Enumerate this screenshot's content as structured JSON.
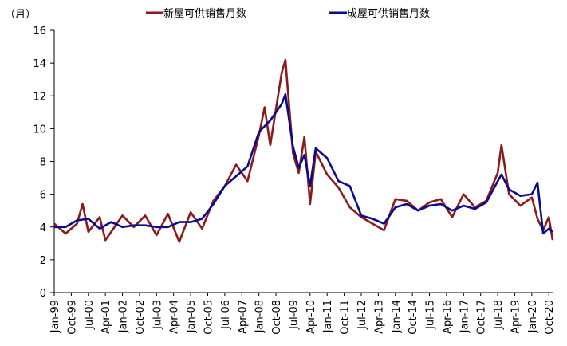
{
  "chart_data": {
    "type": "line",
    "unit_label": "（月）",
    "ylim": [
      0,
      16
    ],
    "yticks": [
      0,
      2,
      4,
      6,
      8,
      10,
      12,
      14,
      16
    ],
    "x_range": [
      "Jan-99",
      "Dec-20"
    ],
    "x_tick_labels": [
      "Jan-99",
      "Oct-99",
      "Jul-00",
      "Apr-01",
      "Jan-02",
      "Oct-02",
      "Jul-03",
      "Apr-04",
      "Jan-05",
      "Oct-05",
      "Jul-06",
      "Apr-07",
      "Jan-08",
      "Oct-08",
      "Jul-09",
      "Apr-10",
      "Jan-11",
      "Oct-11",
      "Jul-12",
      "Apr-13",
      "Jan-14",
      "Oct-14",
      "Jul-15",
      "Apr-16",
      "Jan-17",
      "Oct-17",
      "Jul-18",
      "Apr-19",
      "Jan-20",
      "Oct-20"
    ],
    "grid": false,
    "legend_position": "top",
    "series": [
      {
        "name": "新屋可供销售月数",
        "color": "#8B1A1A",
        "points": [
          [
            "Jan-99",
            4.2
          ],
          [
            "Jul-99",
            3.6
          ],
          [
            "Jan-00",
            4.2
          ],
          [
            "Apr-00",
            5.4
          ],
          [
            "Jul-00",
            3.7
          ],
          [
            "Jan-01",
            4.6
          ],
          [
            "Apr-01",
            3.2
          ],
          [
            "Jan-02",
            4.7
          ],
          [
            "Jul-02",
            4.0
          ],
          [
            "Jan-03",
            4.7
          ],
          [
            "Jul-03",
            3.5
          ],
          [
            "Jan-04",
            4.8
          ],
          [
            "Jul-04",
            3.1
          ],
          [
            "Jan-05",
            4.9
          ],
          [
            "Jul-05",
            3.9
          ],
          [
            "Jan-06",
            5.6
          ],
          [
            "Jul-06",
            6.5
          ],
          [
            "Jan-07",
            7.8
          ],
          [
            "Jul-07",
            6.8
          ],
          [
            "Jan-08",
            9.6
          ],
          [
            "Apr-08",
            11.3
          ],
          [
            "Jul-08",
            9.0
          ],
          [
            "Jan-09",
            13.4
          ],
          [
            "Mar-09",
            14.2
          ],
          [
            "Jul-09",
            8.5
          ],
          [
            "Oct-09",
            7.3
          ],
          [
            "Jan-10",
            9.5
          ],
          [
            "Apr-10",
            5.4
          ],
          [
            "Jul-10",
            8.6
          ],
          [
            "Jan-11",
            7.2
          ],
          [
            "Jul-11",
            6.4
          ],
          [
            "Jan-12",
            5.2
          ],
          [
            "Jul-12",
            4.6
          ],
          [
            "Jan-13",
            4.2
          ],
          [
            "Jul-13",
            3.8
          ],
          [
            "Jan-14",
            5.7
          ],
          [
            "Jul-14",
            5.6
          ],
          [
            "Jan-15",
            5.0
          ],
          [
            "Jul-15",
            5.5
          ],
          [
            "Jan-16",
            5.7
          ],
          [
            "Jul-16",
            4.6
          ],
          [
            "Jan-17",
            6.0
          ],
          [
            "Jul-17",
            5.2
          ],
          [
            "Jan-18",
            5.6
          ],
          [
            "Jul-18",
            7.3
          ],
          [
            "Sep-18",
            9.0
          ],
          [
            "Jan-19",
            6.0
          ],
          [
            "Jul-19",
            5.3
          ],
          [
            "Jan-20",
            5.8
          ],
          [
            "Apr-20",
            4.5
          ],
          [
            "Jul-20",
            3.8
          ],
          [
            "Oct-20",
            4.6
          ],
          [
            "Dec-20",
            3.2
          ]
        ]
      },
      {
        "name": "成屋可供销售月数",
        "color": "#0A0A8C",
        "points": [
          [
            "Jan-99",
            4.0
          ],
          [
            "Jul-99",
            4.0
          ],
          [
            "Jan-00",
            4.4
          ],
          [
            "Jul-00",
            4.5
          ],
          [
            "Jan-01",
            3.9
          ],
          [
            "Jul-01",
            4.3
          ],
          [
            "Jan-02",
            4.0
          ],
          [
            "Jul-02",
            4.1
          ],
          [
            "Jan-03",
            4.1
          ],
          [
            "Jul-03",
            4.0
          ],
          [
            "Jan-04",
            4.0
          ],
          [
            "Jul-04",
            4.3
          ],
          [
            "Jan-05",
            4.3
          ],
          [
            "Jul-05",
            4.5
          ],
          [
            "Jan-06",
            5.4
          ],
          [
            "Jul-06",
            6.5
          ],
          [
            "Jan-07",
            7.1
          ],
          [
            "Jul-07",
            7.7
          ],
          [
            "Jan-08",
            9.8
          ],
          [
            "Jul-08",
            10.5
          ],
          [
            "Jan-09",
            11.5
          ],
          [
            "Mar-09",
            12.1
          ],
          [
            "Jul-09",
            8.9
          ],
          [
            "Oct-09",
            7.6
          ],
          [
            "Jan-10",
            8.4
          ],
          [
            "Apr-10",
            6.5
          ],
          [
            "Jul-10",
            8.8
          ],
          [
            "Jan-11",
            8.2
          ],
          [
            "Jul-11",
            6.8
          ],
          [
            "Jan-12",
            6.5
          ],
          [
            "Jul-12",
            4.7
          ],
          [
            "Jan-13",
            4.5
          ],
          [
            "Jul-13",
            4.2
          ],
          [
            "Jan-14",
            5.2
          ],
          [
            "Jul-14",
            5.4
          ],
          [
            "Jan-15",
            5.0
          ],
          [
            "Jul-15",
            5.3
          ],
          [
            "Jan-16",
            5.4
          ],
          [
            "Jul-16",
            5.0
          ],
          [
            "Jan-17",
            5.3
          ],
          [
            "Jul-17",
            5.1
          ],
          [
            "Jan-18",
            5.5
          ],
          [
            "Jul-18",
            6.8
          ],
          [
            "Sep-18",
            7.2
          ],
          [
            "Jan-19",
            6.3
          ],
          [
            "Jul-19",
            5.9
          ],
          [
            "Jan-20",
            6.0
          ],
          [
            "Apr-20",
            6.7
          ],
          [
            "Jul-20",
            3.6
          ],
          [
            "Oct-20",
            3.9
          ],
          [
            "Dec-20",
            3.7
          ]
        ]
      }
    ]
  }
}
